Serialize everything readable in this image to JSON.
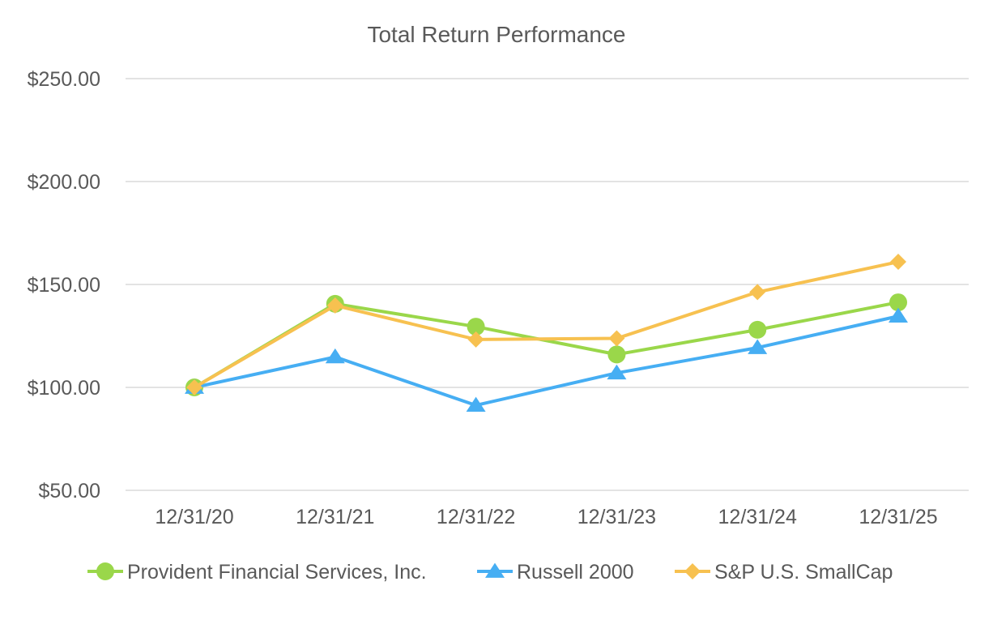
{
  "chart_data": {
    "type": "line",
    "title": "Total Return Performance",
    "xlabel": "",
    "ylabel": "",
    "categories": [
      "12/31/20",
      "12/31/21",
      "12/31/22",
      "12/31/23",
      "12/31/24",
      "12/31/25"
    ],
    "ylim": [
      50,
      250
    ],
    "yticks": [
      50,
      100,
      150,
      200,
      250
    ],
    "ytick_labels": [
      "$50.00",
      "$100.00",
      "$150.00",
      "$200.00",
      "$250.00"
    ],
    "grid": true,
    "legend_position": "bottom",
    "series": [
      {
        "name": "Provident Financial Services, Inc.",
        "values": [
          100.0,
          140.6,
          129.5,
          116.0,
          128.0,
          141.3
        ],
        "color": "#9ad74a",
        "marker": "circle"
      },
      {
        "name": "Russell 2000",
        "values": [
          100.0,
          114.8,
          91.3,
          107.0,
          119.3,
          134.6
        ],
        "color": "#46aef3",
        "marker": "triangle"
      },
      {
        "name": "S&P U.S. SmallCap",
        "values": [
          100.0,
          139.8,
          123.3,
          123.8,
          146.3,
          161.0
        ],
        "color": "#f7c150",
        "marker": "diamond"
      }
    ]
  }
}
